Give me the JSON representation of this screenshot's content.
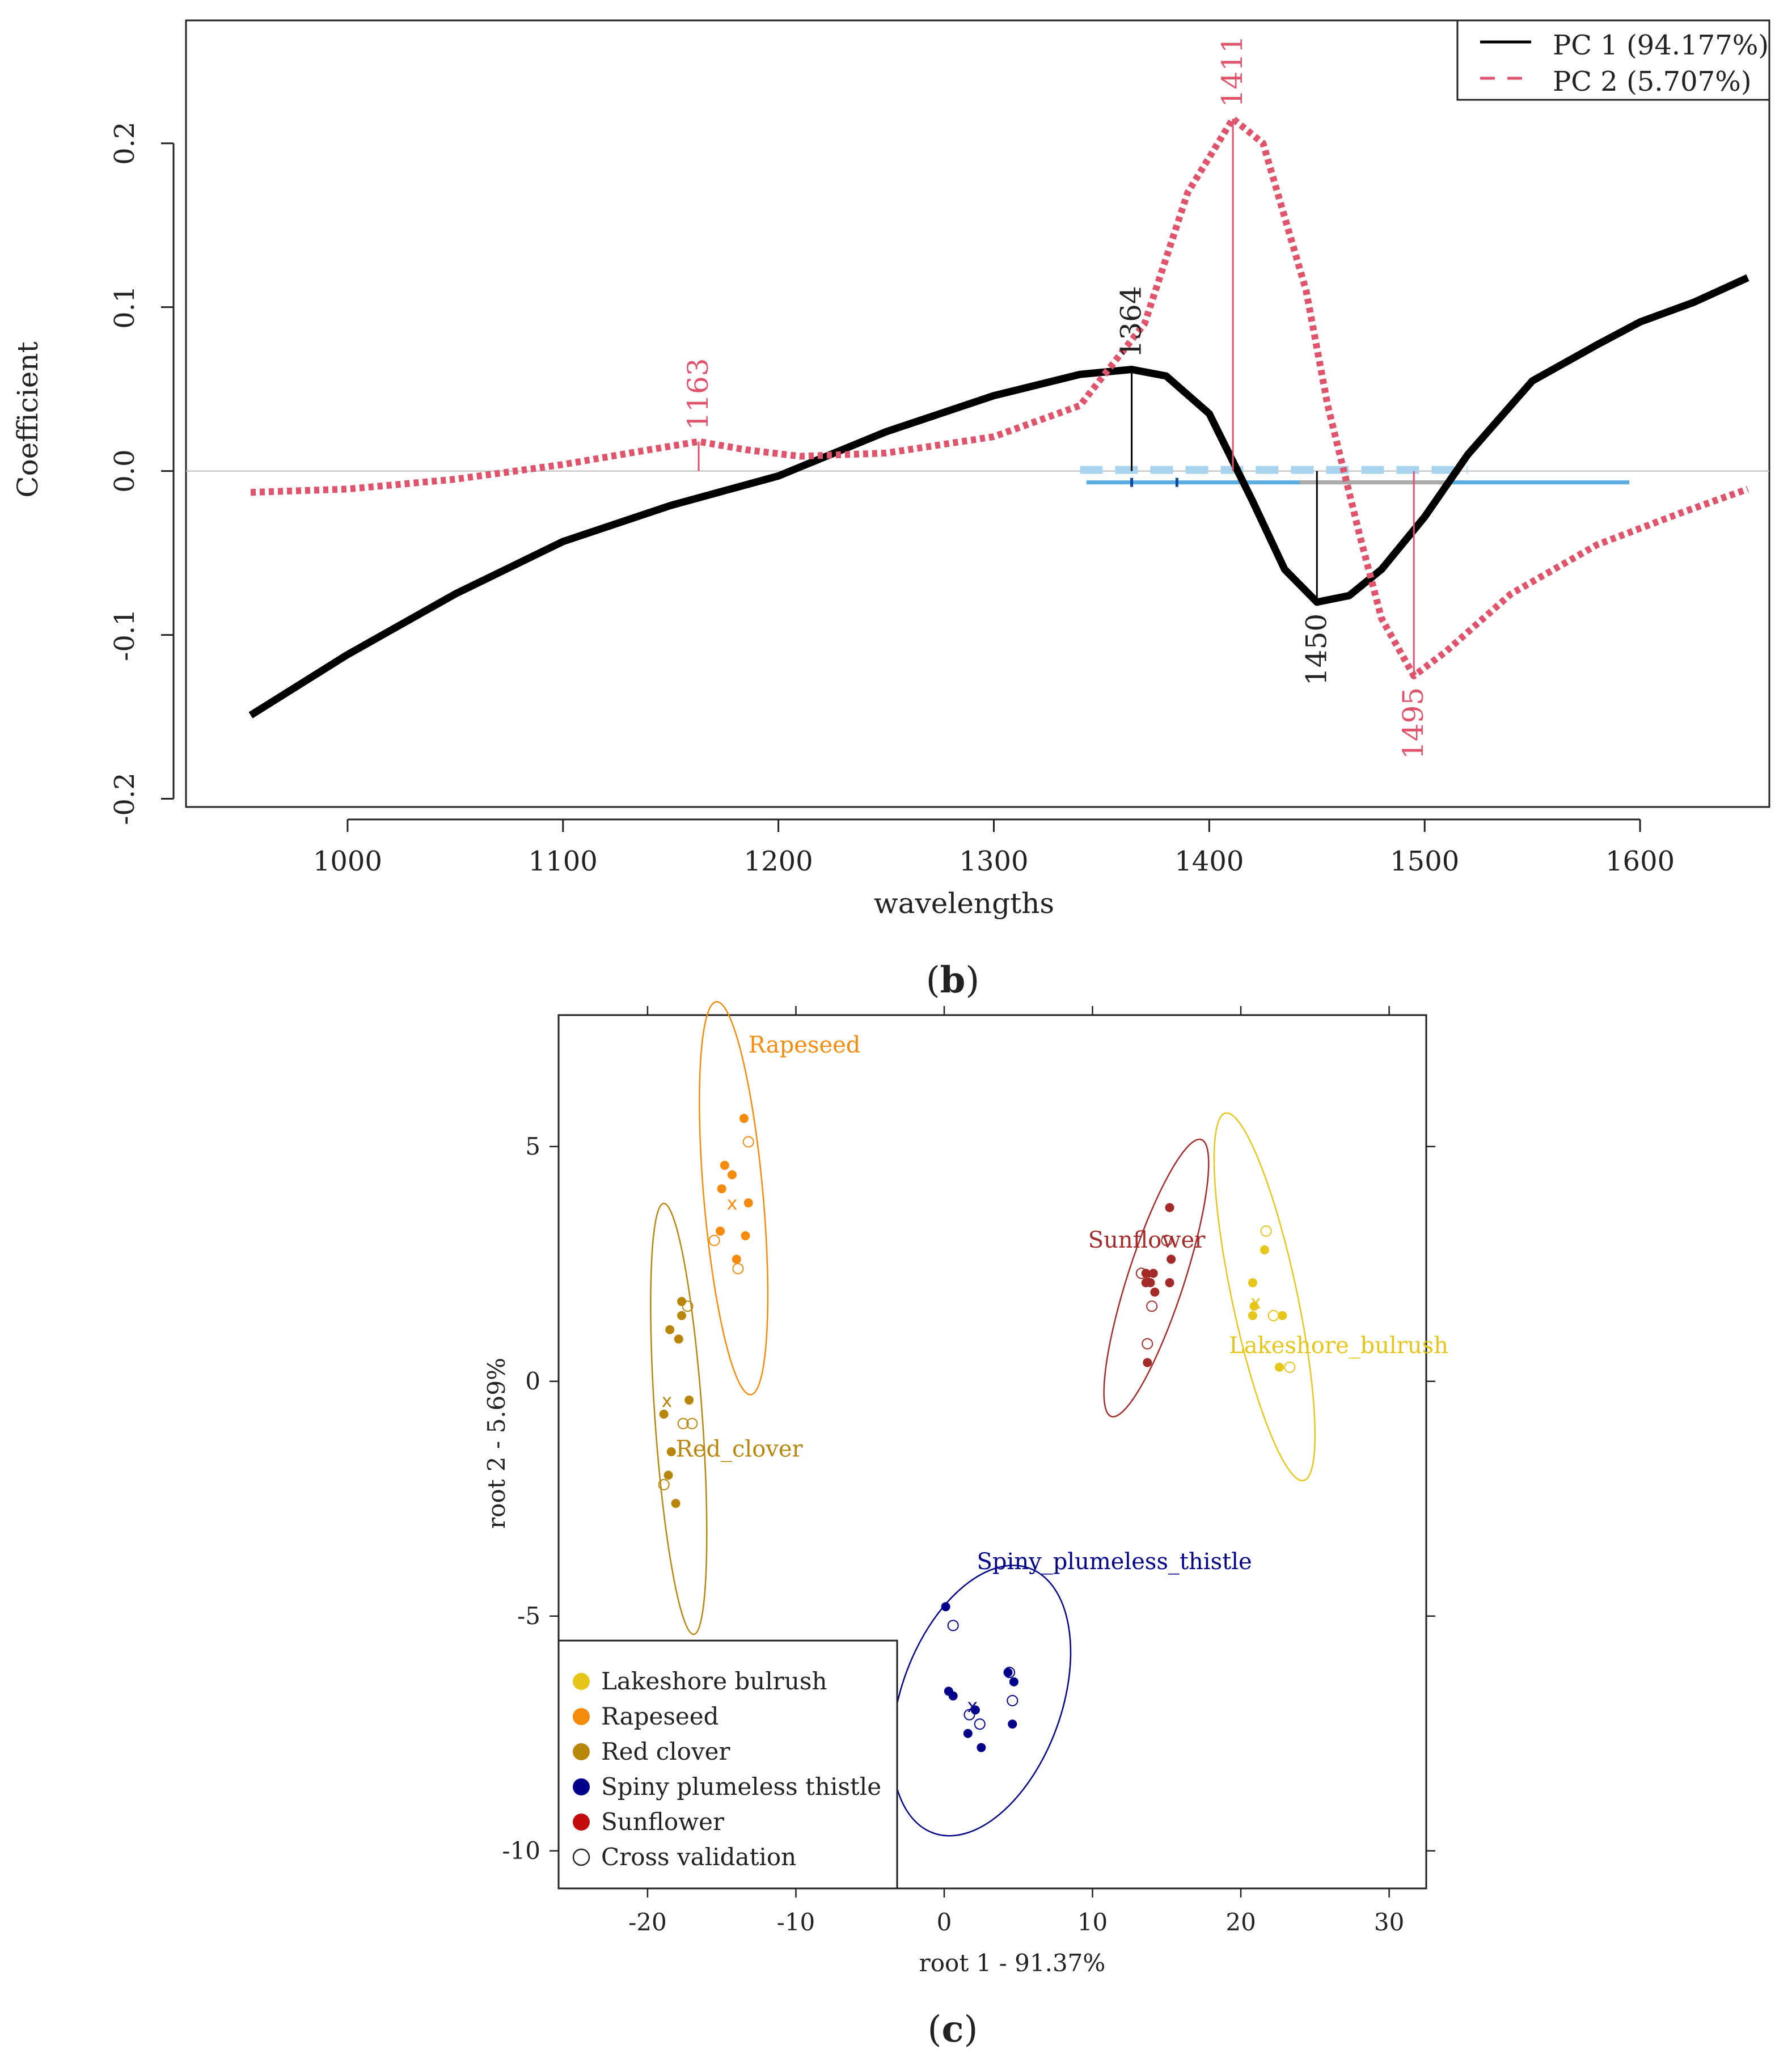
{
  "chart_data": [
    {
      "type": "line",
      "panel_label": "b",
      "title": "",
      "xlabel": "wavelengths",
      "ylabel": "Coefficient",
      "xlim": [
        925,
        1660
      ],
      "ylim": [
        -0.205,
        0.275
      ],
      "xticks": [
        "1000",
        "1100",
        "1200",
        "1300",
        "1400",
        "1500",
        "1600"
      ],
      "yticks": [
        "-0.2",
        "-0.1",
        "0.0",
        "0.1",
        "0.2"
      ],
      "legend": {
        "position": "top-right",
        "entries": [
          "PC 1 (94.177%)",
          "PC 2 (5.707%)"
        ]
      },
      "series": [
        {
          "name": "PC 1 (94.177%)",
          "color": "#000000",
          "style": "solid",
          "points": [
            [
              955,
              -0.149
            ],
            [
              1000,
              -0.112
            ],
            [
              1050,
              -0.075
            ],
            [
              1100,
              -0.043
            ],
            [
              1150,
              -0.021
            ],
            [
              1200,
              -0.003
            ],
            [
              1250,
              0.024
            ],
            [
              1300,
              0.046
            ],
            [
              1340,
              0.059
            ],
            [
              1364,
              0.062
            ],
            [
              1380,
              0.058
            ],
            [
              1400,
              0.035
            ],
            [
              1420,
              -0.018
            ],
            [
              1435,
              -0.06
            ],
            [
              1450,
              -0.08
            ],
            [
              1465,
              -0.076
            ],
            [
              1480,
              -0.06
            ],
            [
              1500,
              -0.028
            ],
            [
              1520,
              0.01
            ],
            [
              1550,
              0.055
            ],
            [
              1580,
              0.077
            ],
            [
              1600,
              0.091
            ],
            [
              1625,
              0.103
            ],
            [
              1650,
              0.118
            ]
          ],
          "peaks": [
            {
              "x": 1364,
              "y": 0.062,
              "label": "1364"
            },
            {
              "x": 1450,
              "y": -0.08,
              "label": "1450"
            }
          ]
        },
        {
          "name": "PC 2 (5.707%)",
          "color": "#df536b",
          "style": "dotted",
          "points": [
            [
              955,
              -0.013
            ],
            [
              1000,
              -0.011
            ],
            [
              1050,
              -0.005
            ],
            [
              1100,
              0.004
            ],
            [
              1140,
              0.013
            ],
            [
              1163,
              0.018
            ],
            [
              1185,
              0.013
            ],
            [
              1210,
              0.009
            ],
            [
              1250,
              0.011
            ],
            [
              1300,
              0.021
            ],
            [
              1340,
              0.04
            ],
            [
              1370,
              0.09
            ],
            [
              1390,
              0.17
            ],
            [
              1411,
              0.215
            ],
            [
              1425,
              0.2
            ],
            [
              1445,
              0.11
            ],
            [
              1455,
              0.04
            ],
            [
              1470,
              -0.04
            ],
            [
              1480,
              -0.09
            ],
            [
              1495,
              -0.125
            ],
            [
              1510,
              -0.11
            ],
            [
              1540,
              -0.075
            ],
            [
              1580,
              -0.045
            ],
            [
              1620,
              -0.025
            ],
            [
              1650,
              -0.011
            ]
          ],
          "peaks": [
            {
              "x": 1163,
              "y": 0.018,
              "label": "1163"
            },
            {
              "x": 1411,
              "y": 0.215,
              "label": "1411"
            },
            {
              "x": 1495,
              "y": -0.125,
              "label": "1495"
            }
          ]
        }
      ],
      "bands": [
        {
          "x0": 1343,
          "x1": 1595,
          "color": "#5dade2",
          "style": "solid"
        },
        {
          "x0": 1442,
          "x1": 1510,
          "color": "#aaaaaa",
          "style": "solid"
        },
        {
          "x0": 1340,
          "x1": 1520,
          "color": "#a9d4f0",
          "style": "dashed"
        }
      ],
      "band_ticks": [
        1364,
        1385
      ]
    },
    {
      "type": "scatter",
      "panel_label": "c",
      "title": "",
      "xlabel": "root 1 - 91.37%",
      "ylabel": "root 2 - 5.69%",
      "xlim": [
        -26,
        32.5
      ],
      "ylim": [
        -10.8,
        7.8
      ],
      "xticks": [
        "-20",
        "-10",
        "0",
        "10",
        "20",
        "30"
      ],
      "yticks": [
        "-10",
        "-5",
        "0",
        "5"
      ],
      "legend": {
        "position": "bottom-left",
        "entries": [
          "Lakeshore bulrush",
          "Rapeseed",
          "Red clover",
          "Spiny plumeless thistle",
          "Sunflower",
          "Cross validation"
        ]
      },
      "series": [
        {
          "name": "Lakeshore bulrush",
          "label": "Lakeshore_bulrush",
          "color": "#e6c619",
          "ellipse": {
            "cx": 21.6,
            "cy": 1.8,
            "rx": 2.2,
            "ry": 4.0,
            "angle_deg": -12
          },
          "centroid": [
            21.0,
            1.7
          ],
          "points": [
            [
              21.6,
              2.8
            ],
            [
              20.8,
              2.1
            ],
            [
              20.9,
              1.6
            ],
            [
              20.8,
              1.4
            ],
            [
              22.8,
              1.4
            ],
            [
              22.6,
              0.3
            ]
          ],
          "cv_points": [
            [
              21.7,
              3.2
            ],
            [
              22.2,
              1.4
            ],
            [
              23.3,
              0.3
            ]
          ]
        },
        {
          "name": "Rapeseed",
          "label": "Rapeseed",
          "color": "#f58a0b",
          "ellipse": {
            "cx": -14.2,
            "cy": 3.9,
            "rx": 2.0,
            "ry": 4.2,
            "angle_deg": -5
          },
          "centroid": [
            -14.3,
            3.8
          ],
          "points": [
            [
              -13.5,
              5.6
            ],
            [
              -14.8,
              4.6
            ],
            [
              -14.3,
              4.4
            ],
            [
              -15.0,
              4.1
            ],
            [
              -13.2,
              3.8
            ],
            [
              -15.1,
              3.2
            ],
            [
              -13.4,
              3.1
            ],
            [
              -14.0,
              2.6
            ]
          ],
          "cv_points": [
            [
              -13.2,
              5.1
            ],
            [
              -15.5,
              3.0
            ],
            [
              -13.9,
              2.4
            ]
          ]
        },
        {
          "name": "Red clover",
          "label": "Red_clover",
          "color": "#b8860b",
          "ellipse": {
            "cx": -17.9,
            "cy": -0.8,
            "rx": 1.6,
            "ry": 4.6,
            "angle_deg": -4
          },
          "centroid": [
            -18.7,
            -0.4
          ],
          "points": [
            [
              -17.7,
              1.7
            ],
            [
              -17.7,
              1.4
            ],
            [
              -18.5,
              1.1
            ],
            [
              -17.9,
              0.9
            ],
            [
              -17.2,
              -0.4
            ],
            [
              -18.9,
              -0.7
            ],
            [
              -18.4,
              -1.5
            ],
            [
              -18.6,
              -2.0
            ],
            [
              -18.1,
              -2.6
            ]
          ],
          "cv_points": [
            [
              -17.3,
              1.6
            ],
            [
              -17.6,
              -0.9
            ],
            [
              -17.0,
              -0.9
            ],
            [
              -18.9,
              -2.2
            ]
          ]
        },
        {
          "name": "Spiny plumeless thistle",
          "label": "Spiny_plumeless_thistle",
          "color": "#00008b",
          "ellipse": {
            "cx": 2.5,
            "cy": -6.8,
            "rx": 5.4,
            "ry": 3.0,
            "angle_deg": 20
          },
          "centroid": [
            1.9,
            -6.9
          ],
          "points": [
            [
              0.1,
              -4.8
            ],
            [
              0.3,
              -6.6
            ],
            [
              0.6,
              -6.7
            ],
            [
              2.1,
              -7.0
            ],
            [
              4.3,
              -6.2
            ],
            [
              4.7,
              -6.4
            ],
            [
              1.6,
              -7.5
            ],
            [
              4.6,
              -7.3
            ],
            [
              2.5,
              -7.8
            ]
          ],
          "cv_points": [
            [
              0.6,
              -5.2
            ],
            [
              4.4,
              -6.2
            ],
            [
              4.6,
              -6.8
            ],
            [
              1.7,
              -7.1
            ],
            [
              2.4,
              -7.3
            ]
          ]
        },
        {
          "name": "Sunflower",
          "label": "Sunflower",
          "color": "#a52a2a",
          "ellipse": {
            "cx": 14.3,
            "cy": 2.2,
            "rx": 1.9,
            "ry": 3.1,
            "angle_deg": 18
          },
          "centroid": [
            13.7,
            2.2
          ],
          "points": [
            [
              15.2,
              3.7
            ],
            [
              15.3,
              2.6
            ],
            [
              13.6,
              2.3
            ],
            [
              14.1,
              2.3
            ],
            [
              13.6,
              2.1
            ],
            [
              13.9,
              2.1
            ],
            [
              15.2,
              2.1
            ],
            [
              14.2,
              1.9
            ],
            [
              13.7,
              0.4
            ]
          ],
          "cv_points": [
            [
              15.0,
              3.0
            ],
            [
              13.3,
              2.3
            ],
            [
              14.0,
              1.6
            ],
            [
              13.7,
              0.8
            ]
          ]
        }
      ],
      "cross_validation_marker": "open circle",
      "centroid_marker": "x"
    }
  ]
}
